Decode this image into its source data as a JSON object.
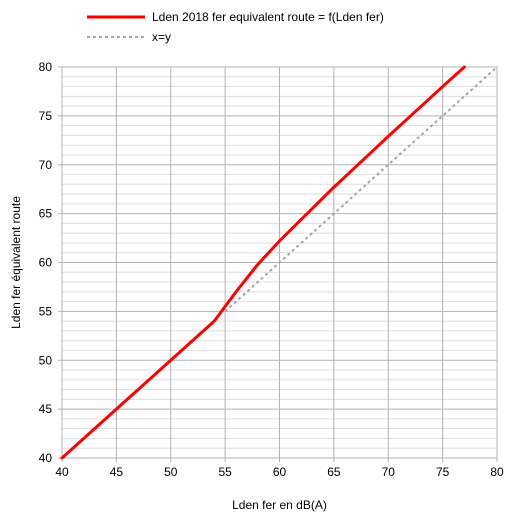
{
  "chart_data": {
    "type": "line",
    "title": "",
    "xlabel": "Lden fer en dB(A)",
    "ylabel": "Lden fer équivalent route",
    "xlim": [
      40,
      80
    ],
    "ylim": [
      40,
      80
    ],
    "x_ticks": [
      40,
      45,
      50,
      55,
      60,
      65,
      70,
      75,
      80
    ],
    "y_ticks": [
      40,
      45,
      50,
      55,
      60,
      65,
      70,
      75,
      80
    ],
    "grid": true,
    "minor_grid": true,
    "legend_position": "top",
    "series": [
      {
        "name": "Lden 2018 fer equivalent route = f(Lden fer)",
        "color": "#ff0000",
        "style": "solid",
        "x": [
          40,
          45,
          50,
          54,
          56,
          58,
          60,
          62,
          65,
          70,
          75,
          77
        ],
        "y": [
          40,
          45,
          50,
          54,
          57,
          59.8,
          62.2,
          64.4,
          67.7,
          72.9,
          78,
          80
        ]
      },
      {
        "name": "x=y",
        "color": "#a6a6a6",
        "style": "dotted",
        "x": [
          55,
          80
        ],
        "y": [
          55,
          80
        ]
      }
    ]
  }
}
